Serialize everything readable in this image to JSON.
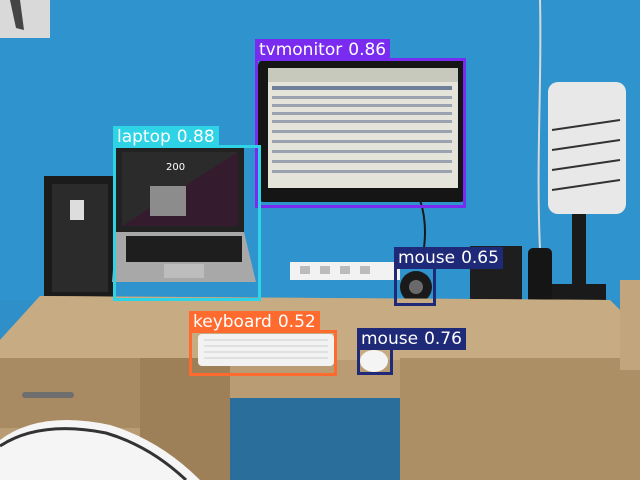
{
  "image": {
    "description_colors": {
      "wall": "#2f8fc8",
      "desk": "#b99c74"
    }
  },
  "detections": [
    {
      "class": "tvmonitor",
      "score": "0.86",
      "color": "#7a2bf0"
    },
    {
      "class": "laptop",
      "score": "0.88",
      "color": "#2fd3e6"
    },
    {
      "class": "mouse",
      "score": "0.65",
      "color": "#1e2a78"
    },
    {
      "class": "keyboard",
      "score": "0.52",
      "color": "#ff6a2f"
    },
    {
      "class": "mouse",
      "score": "0.76",
      "color": "#1e2a78"
    }
  ]
}
